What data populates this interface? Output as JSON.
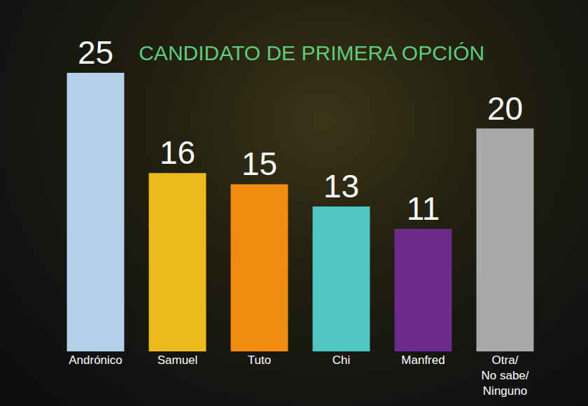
{
  "chart_data": {
    "type": "bar",
    "title": "CANDIDATO DE PRIMERA OPCIÓN",
    "categories": [
      "Andrónico",
      "Samuel",
      "Tuto",
      "Chi",
      "Manfred",
      "Otra/ No sabe/ Ninguno"
    ],
    "values": [
      25,
      16,
      15,
      13,
      11,
      20
    ],
    "colors": [
      "#b4cfea",
      "#ecba1e",
      "#f28c0f",
      "#4fc6c1",
      "#6b2a8c",
      "#a9a9a9"
    ],
    "ylim": [
      0,
      25
    ],
    "grid": false,
    "data_labels": true,
    "tick_labels": "x"
  }
}
